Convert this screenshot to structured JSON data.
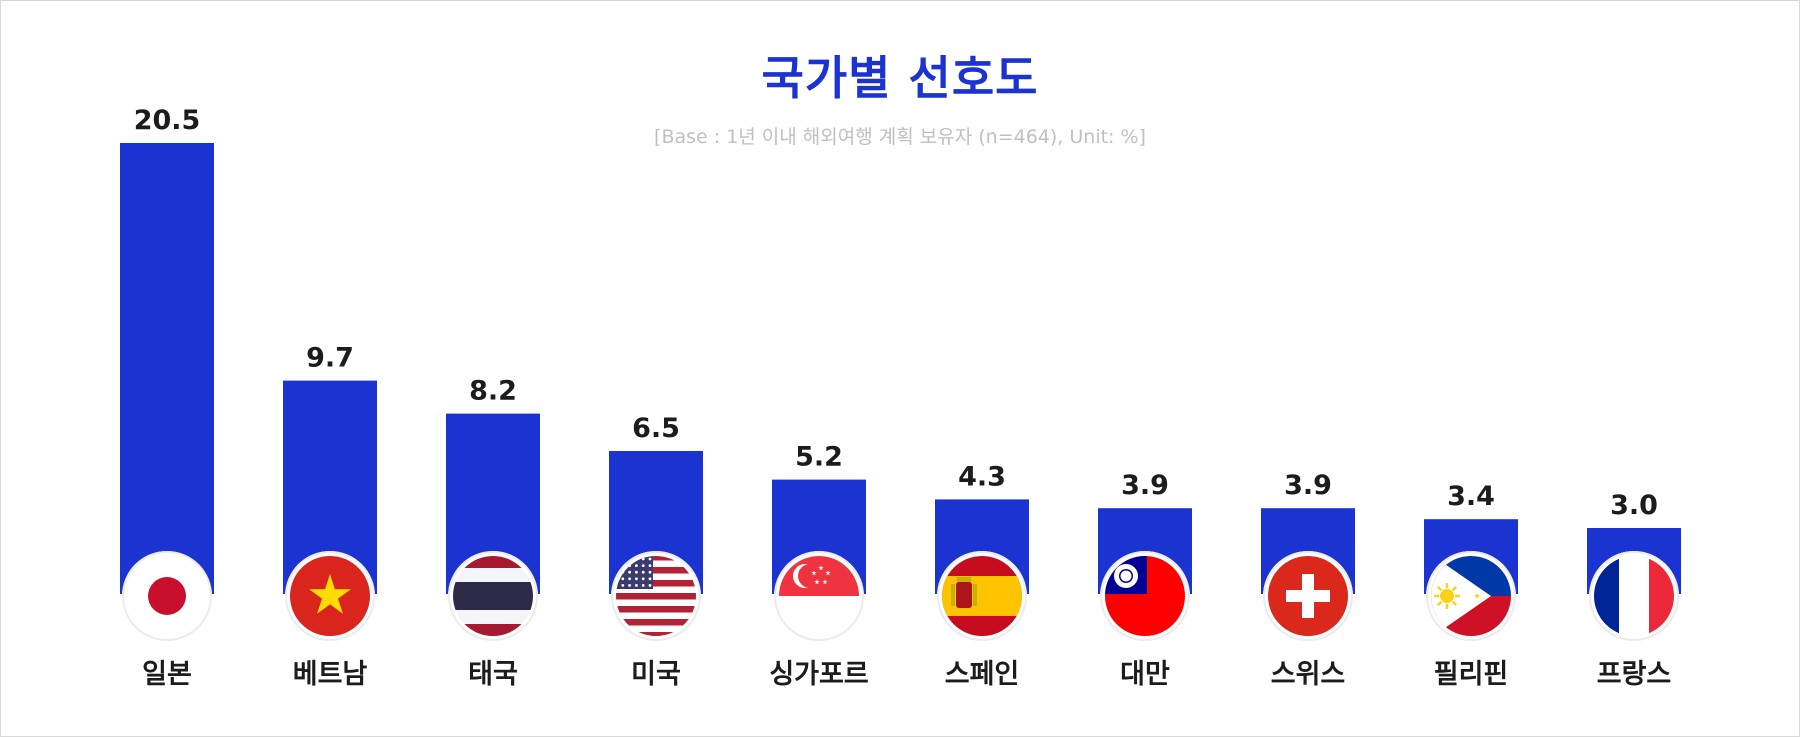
{
  "title": "국가별 선호도",
  "subtitle": "[Base : 1년 이내 해외여행 계획 보유자 (n=464), Unit: %]",
  "colors": {
    "bar": "#1a33d1",
    "title": "#1a33d1",
    "subtitle": "#c0c0c0"
  },
  "chart_data": {
    "type": "bar",
    "categories": [
      "일본",
      "베트남",
      "태국",
      "미국",
      "싱가포르",
      "스페인",
      "대만",
      "스위스",
      "필리핀",
      "프랑스"
    ],
    "values": [
      20.5,
      9.7,
      8.2,
      6.5,
      5.2,
      4.3,
      3.9,
      3.9,
      3.4,
      3.0
    ],
    "value_labels": [
      "20.5",
      "9.7",
      "8.2",
      "6.5",
      "5.2",
      "4.3",
      "3.9",
      "3.9",
      "3.4",
      "3.0"
    ],
    "title": "국가별 선호도",
    "subtitle": "[Base : 1년 이내 해외여행 계획 보유자 (n=464), Unit: %]",
    "grid": false,
    "legend": "none",
    "category_icons": [
      "japan-flag-icon",
      "vietnam-flag-icon",
      "thailand-flag-icon",
      "usa-flag-icon",
      "singapore-flag-icon",
      "spain-flag-icon",
      "taiwan-flag-icon",
      "switzerland-flag-icon",
      "philippines-flag-icon",
      "france-flag-icon"
    ]
  }
}
